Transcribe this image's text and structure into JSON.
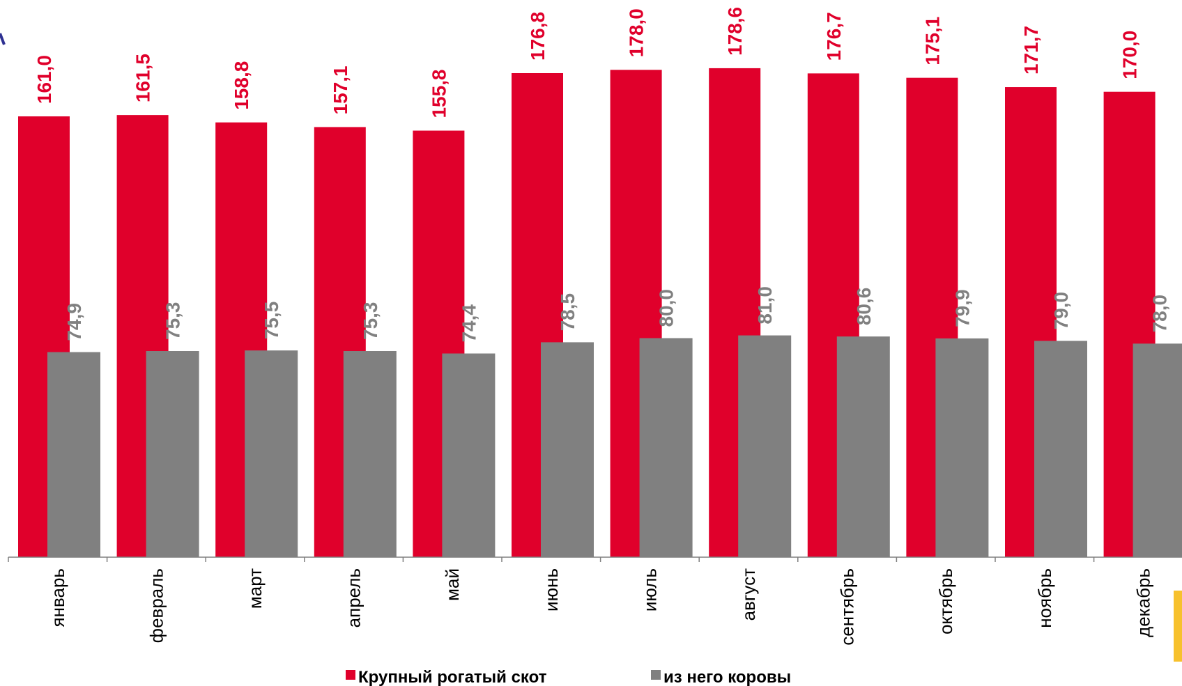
{
  "chart_data": {
    "type": "bar",
    "categories": [
      "январь",
      "февраль",
      "март",
      "апрель",
      "май",
      "июнь",
      "июль",
      "август",
      "сентябрь",
      "октябрь",
      "ноябрь",
      "декабрь"
    ],
    "series": [
      {
        "name": "Крупный рогатый скот",
        "color": "#E0002B",
        "label_color": "#E0002B",
        "values": [
          161.0,
          161.5,
          158.8,
          157.1,
          155.8,
          176.8,
          178.0,
          178.6,
          176.7,
          175.1,
          171.7,
          170.0
        ],
        "labels": [
          "161,0",
          "161,5",
          "158,8",
          "157,1",
          "155,8",
          "176,8",
          "178,0",
          "178,6",
          "176,7",
          "175,1",
          "171,7",
          "170,0"
        ]
      },
      {
        "name": "из него коровы",
        "color": "#808080",
        "label_color": "#808080",
        "values": [
          74.9,
          75.3,
          75.5,
          75.3,
          74.4,
          78.5,
          80.0,
          81.0,
          80.6,
          79.9,
          79.0,
          78.0
        ],
        "labels": [
          "74,9",
          "75,3",
          "75,5",
          "75,3",
          "74,4",
          "78,5",
          "80,0",
          "81,0",
          "80,6",
          "79,9",
          "79,0",
          "78,0"
        ]
      }
    ],
    "title": "",
    "xlabel": "",
    "ylabel": "",
    "grid": false,
    "legend_position": "bottom"
  }
}
